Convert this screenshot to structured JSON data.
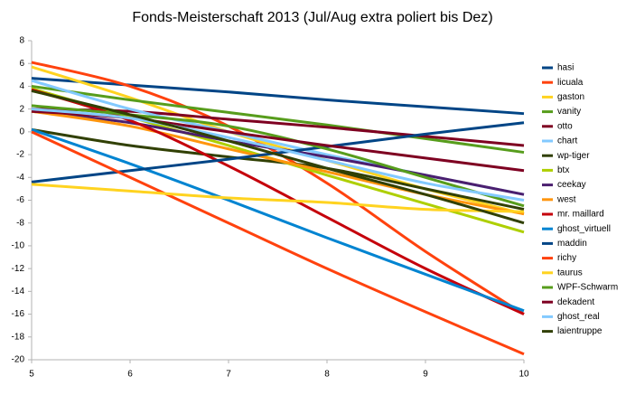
{
  "chart_data": {
    "type": "line",
    "title": "Fonds-Meisterschaft 2013 (Jul/Aug extra poliert bis Dez)",
    "x": [
      5,
      6,
      7,
      8,
      9,
      10
    ],
    "xlim": [
      5,
      10
    ],
    "xticks": [
      5,
      6,
      7,
      8,
      9,
      10
    ],
    "ylim": [
      -20,
      8
    ],
    "yticks": [
      -20,
      -18,
      -16,
      -14,
      -12,
      -10,
      -8,
      -6,
      -4,
      -2,
      0,
      2,
      4,
      6,
      8
    ],
    "grid": false,
    "legend": "right",
    "series": [
      {
        "name": "hasi",
        "color": "#004586",
        "values": [
          4.7,
          4.1,
          3.5,
          2.8,
          2.2,
          1.6
        ]
      },
      {
        "name": "licuala",
        "color": "#ff420e",
        "values": [
          6.1,
          4.0,
          0.5,
          -4.5,
          -10.5,
          -16
        ]
      },
      {
        "name": "gaston",
        "color": "#ffd320",
        "values": [
          5.7,
          3.0,
          0,
          -2.5,
          -5,
          -7.2
        ]
      },
      {
        "name": "vanity",
        "color": "#579d1c",
        "values": [
          4.0,
          2.8,
          1.7,
          0.6,
          -0.6,
          -1.8
        ]
      },
      {
        "name": "otto",
        "color": "#7e0021",
        "values": [
          2.0,
          1.8,
          1.1,
          0.4,
          -0.4,
          -1.2
        ]
      },
      {
        "name": "chart",
        "color": "#83caff",
        "values": [
          4.5,
          2.0,
          0,
          -2,
          -3.8,
          -5.5
        ]
      },
      {
        "name": "wp-tiger",
        "color": "#314004",
        "values": [
          0.2,
          -1.2,
          -2.2,
          -3.2,
          -5,
          -6.8
        ]
      },
      {
        "name": "btx",
        "color": "#aecf00",
        "values": [
          3.8,
          1.3,
          -1.2,
          -3.8,
          -6.3,
          -8.8
        ]
      },
      {
        "name": "ceekay",
        "color": "#4b1f6f",
        "values": [
          1.8,
          0.8,
          -0.8,
          -2.2,
          -3.8,
          -5.5
        ]
      },
      {
        "name": "west",
        "color": "#ff950e",
        "values": [
          1.8,
          0.5,
          -1.5,
          -3.5,
          -5.5,
          -7.2
        ]
      },
      {
        "name": "mr. maillard",
        "color": "#c5000b",
        "values": [
          3.7,
          1.0,
          -3.0,
          -7.5,
          -12,
          -16
        ]
      },
      {
        "name": "ghost_virtuell",
        "color": "#0084d1",
        "values": [
          0.2,
          -2.8,
          -6,
          -9.3,
          -12.5,
          -15.7
        ]
      },
      {
        "name": "maddin",
        "color": "#004586",
        "values": [
          -4.4,
          -3.4,
          -2.4,
          -1.3,
          -0.2,
          0.8
        ]
      },
      {
        "name": "richy",
        "color": "#ff420e",
        "values": [
          0,
          -4,
          -8,
          -12,
          -15.8,
          -19.5
        ]
      },
      {
        "name": "taurus",
        "color": "#ffd320",
        "values": [
          -4.6,
          -5.2,
          -5.8,
          -6.2,
          -6.8,
          -7.0
        ]
      },
      {
        "name": "WPF-Schwarm",
        "color": "#579d1c",
        "values": [
          2.3,
          1.5,
          0.5,
          -1.5,
          -4,
          -6.5
        ]
      },
      {
        "name": "dekadent",
        "color": "#7e0021",
        "values": [
          1.8,
          1.2,
          0,
          -1.2,
          -2.3,
          -3.4
        ]
      },
      {
        "name": "ghost_real",
        "color": "#83caff",
        "values": [
          2.0,
          1.2,
          -0.5,
          -2.5,
          -4.5,
          -6.0
        ]
      },
      {
        "name": "laientruppe",
        "color": "#314004",
        "values": [
          3.6,
          1.5,
          -0.8,
          -3.2,
          -5.5,
          -8
        ]
      }
    ]
  }
}
